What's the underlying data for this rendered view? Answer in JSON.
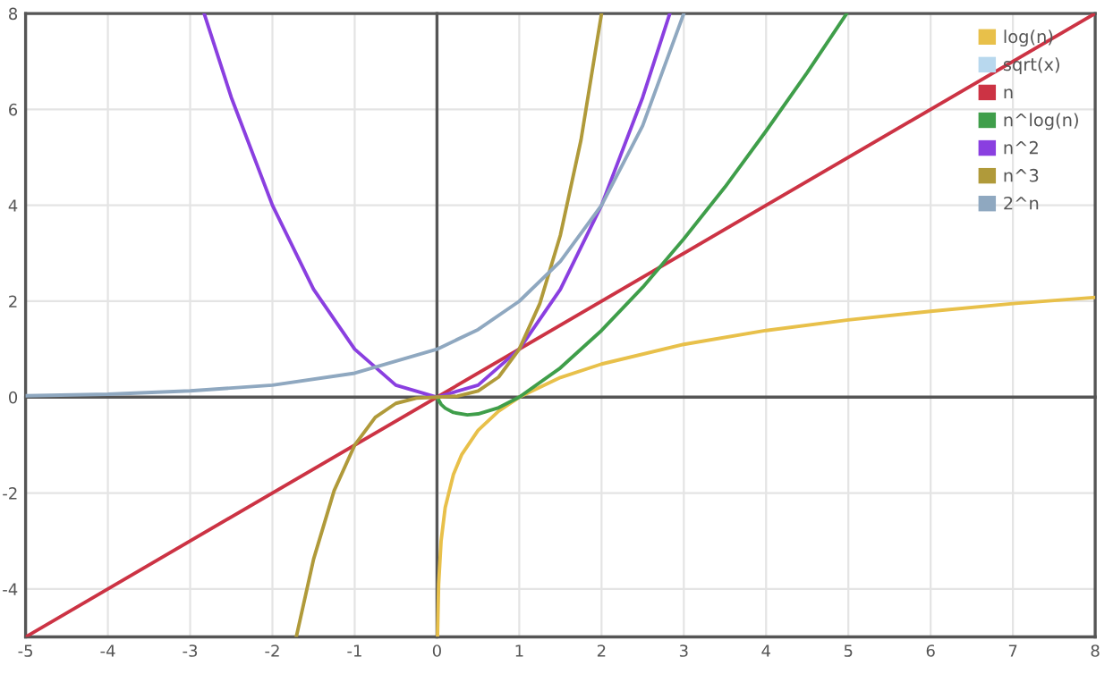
{
  "chart_data": {
    "type": "line",
    "xlim": [
      -5,
      8
    ],
    "ylim": [
      -5,
      8
    ],
    "xticks": [
      -5,
      -4,
      -3,
      -2,
      -1,
      0,
      1,
      2,
      3,
      4,
      5,
      6,
      7,
      8
    ],
    "yticks": [
      -4,
      -2,
      0,
      2,
      4,
      6,
      8
    ],
    "grid": true,
    "legend": "top right",
    "marker": "none",
    "line_style": "solid",
    "series": [
      {
        "name": "log(n)",
        "color": "#e8c04a",
        "x": [
          0.007,
          0.02,
          0.05,
          0.1,
          0.2,
          0.3,
          0.5,
          0.75,
          1,
          1.5,
          2,
          3,
          4,
          5,
          6,
          7,
          8
        ],
        "values": [
          -4.96,
          -3.9,
          -3.0,
          -2.3,
          -1.61,
          -1.2,
          -0.69,
          -0.29,
          0,
          0.41,
          0.69,
          1.1,
          1.39,
          1.61,
          1.79,
          1.95,
          2.08
        ]
      },
      {
        "name": "sqrt(x)",
        "color": "#b8d8ee",
        "type": "line"
      },
      {
        "name": "n",
        "color": "#cc3344",
        "x": [
          -5,
          8
        ],
        "values": [
          -5,
          8
        ]
      },
      {
        "name": "n^log(n)",
        "color": "#3f9e4a",
        "x": [
          0,
          0.05,
          0.1,
          0.2,
          0.37,
          0.5,
          0.75,
          1,
          1.5,
          2,
          2.5,
          3,
          3.5,
          4,
          4.5,
          4.98
        ],
        "values": [
          0,
          -0.15,
          -0.23,
          -0.32,
          -0.37,
          -0.35,
          -0.22,
          0,
          0.61,
          1.39,
          2.29,
          3.3,
          4.38,
          5.55,
          6.77,
          8.0
        ]
      },
      {
        "name": "n^2",
        "color": "#8a3fe0",
        "x": [
          -2.83,
          -2.5,
          -2,
          -1.5,
          -1,
          -0.5,
          0,
          0.5,
          1,
          1.5,
          2,
          2.5,
          2.83
        ],
        "values": [
          8,
          6.25,
          4,
          2.25,
          1,
          0.25,
          0,
          0.25,
          1,
          2.25,
          4,
          6.25,
          8
        ]
      },
      {
        "name": "n^3",
        "color": "#b09a3a",
        "x": [
          -1.71,
          -1.5,
          -1.25,
          -1,
          -0.75,
          -0.5,
          -0.25,
          0,
          0.25,
          0.5,
          0.75,
          1,
          1.25,
          1.5,
          1.75,
          2
        ],
        "values": [
          -5,
          -3.38,
          -1.95,
          -1,
          -0.42,
          -0.13,
          -0.02,
          0,
          0.02,
          0.13,
          0.42,
          1,
          1.95,
          3.38,
          5.36,
          8
        ]
      },
      {
        "name": "2^n",
        "color": "#8fa8c0",
        "x": [
          -5,
          -4,
          -3,
          -2,
          -1,
          0,
          0.5,
          1,
          1.5,
          2,
          2.5,
          3
        ],
        "values": [
          0.03,
          0.06,
          0.13,
          0.25,
          0.5,
          1,
          1.41,
          2,
          2.83,
          4,
          5.66,
          8
        ]
      }
    ]
  }
}
